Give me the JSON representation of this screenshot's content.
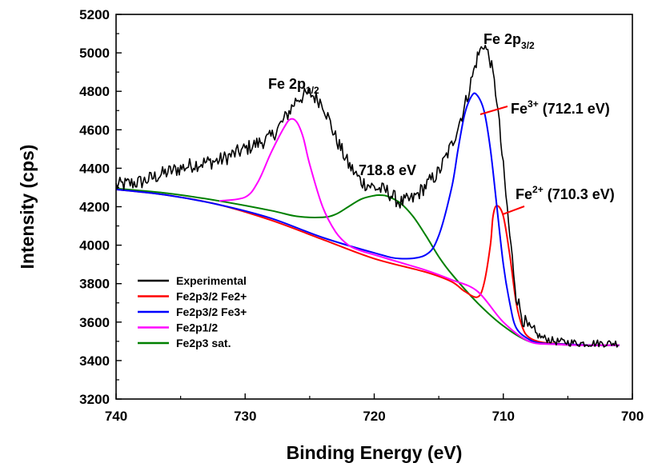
{
  "chart_data": {
    "type": "line",
    "xlabel": "Binding Energy (eV)",
    "ylabel": "Intensity (cps)",
    "xlim": [
      740,
      700
    ],
    "ylim": [
      3200,
      5200
    ],
    "x_ticks": [
      740,
      730,
      720,
      710,
      700
    ],
    "y_ticks": [
      3200,
      3400,
      3600,
      3800,
      4000,
      4200,
      4400,
      4600,
      4800,
      5000,
      5200
    ],
    "grid": false,
    "legend_position": "bottom-left",
    "annotations": [
      {
        "id": "fe2p12",
        "base": "Fe 2p",
        "sub": "1/2",
        "x": 726.5,
        "y": 4850
      },
      {
        "id": "fe2p32",
        "base": "Fe 2p",
        "sub": "3/2",
        "x": 712.5,
        "y": 5140
      },
      {
        "id": "sat",
        "text": "718.8 eV",
        "x": 718.8,
        "y": 4430
      },
      {
        "id": "fe3",
        "base": "Fe",
        "sup": "3+",
        "tail": " (712.1 eV)",
        "x": 712.1,
        "y": 4790
      },
      {
        "id": "fe2",
        "base": "Fe",
        "sup": "2+",
        "tail": " (710.3 eV)",
        "x": 710.3,
        "y": 4210
      }
    ],
    "series": [
      {
        "name": "Experimental",
        "color": "#000000",
        "x": [
          740,
          738,
          736,
          734,
          732,
          730,
          728,
          727,
          726,
          725,
          724,
          723,
          722,
          721,
          720,
          719,
          718,
          717,
          716,
          715,
          714,
          713,
          712.5,
          712,
          711.5,
          711,
          710.5,
          710,
          709.5,
          709,
          708.5,
          708,
          707,
          706,
          704,
          702,
          701
        ],
        "y": [
          4310,
          4330,
          4380,
          4420,
          4440,
          4500,
          4560,
          4650,
          4760,
          4790,
          4740,
          4560,
          4420,
          4330,
          4300,
          4280,
          4220,
          4240,
          4310,
          4380,
          4520,
          4720,
          4850,
          4980,
          5050,
          4960,
          4760,
          4400,
          4050,
          3740,
          3620,
          3560,
          3520,
          3500,
          3490,
          3490,
          3490
        ],
        "noise": 40
      },
      {
        "name": "Fe2p3/2 Fe2+",
        "color": "#ff0000",
        "x": [
          740,
          736,
          732,
          728,
          724,
          720,
          716,
          714,
          713,
          712,
          711.5,
          711,
          710.8,
          710.5,
          710,
          709.5,
          709,
          708.5,
          708,
          707,
          705,
          703,
          701
        ],
        "y": [
          4290,
          4260,
          4210,
          4130,
          4030,
          3930,
          3860,
          3810,
          3760,
          3730,
          3800,
          4000,
          4150,
          4205,
          4150,
          3950,
          3700,
          3570,
          3520,
          3495,
          3485,
          3480,
          3480
        ]
      },
      {
        "name": "Fe2p3/2 Fe3+",
        "color": "#0000ff",
        "x": [
          740,
          736,
          732,
          728,
          724,
          720,
          718,
          716,
          715,
          714,
          713.5,
          713,
          712.5,
          712.1,
          711.5,
          711,
          710.5,
          710,
          709.5,
          709,
          708,
          707,
          705,
          703,
          701
        ],
        "y": [
          4290,
          4260,
          4210,
          4140,
          4040,
          3960,
          3930,
          3950,
          4050,
          4300,
          4500,
          4680,
          4770,
          4785,
          4700,
          4500,
          4200,
          3900,
          3700,
          3570,
          3510,
          3490,
          3485,
          3480,
          3480
        ]
      },
      {
        "name": "Fe2p1/2",
        "color": "#ff00ff",
        "x": [
          732,
          730,
          729,
          728,
          727,
          726.5,
          726,
          725.5,
          725,
          724,
          723,
          722,
          721,
          720,
          718,
          716,
          714,
          712,
          710,
          708,
          706,
          704,
          701
        ],
        "y": [
          4230,
          4250,
          4330,
          4480,
          4610,
          4655,
          4640,
          4560,
          4420,
          4200,
          4070,
          4000,
          3970,
          3950,
          3910,
          3870,
          3820,
          3760,
          3600,
          3500,
          3485,
          3480,
          3480
        ]
      },
      {
        "name": "Fe2p3 sat.",
        "color": "#008000",
        "x": [
          740,
          736,
          732,
          728,
          726,
          724,
          723,
          722,
          721,
          720,
          719.5,
          719,
          718,
          717,
          716,
          715,
          714,
          712,
          710,
          708,
          706,
          704,
          701
        ],
        "y": [
          4295,
          4270,
          4230,
          4180,
          4150,
          4145,
          4160,
          4200,
          4240,
          4258,
          4260,
          4255,
          4220,
          4150,
          4050,
          3940,
          3850,
          3700,
          3580,
          3500,
          3485,
          3480,
          3480
        ]
      }
    ]
  }
}
